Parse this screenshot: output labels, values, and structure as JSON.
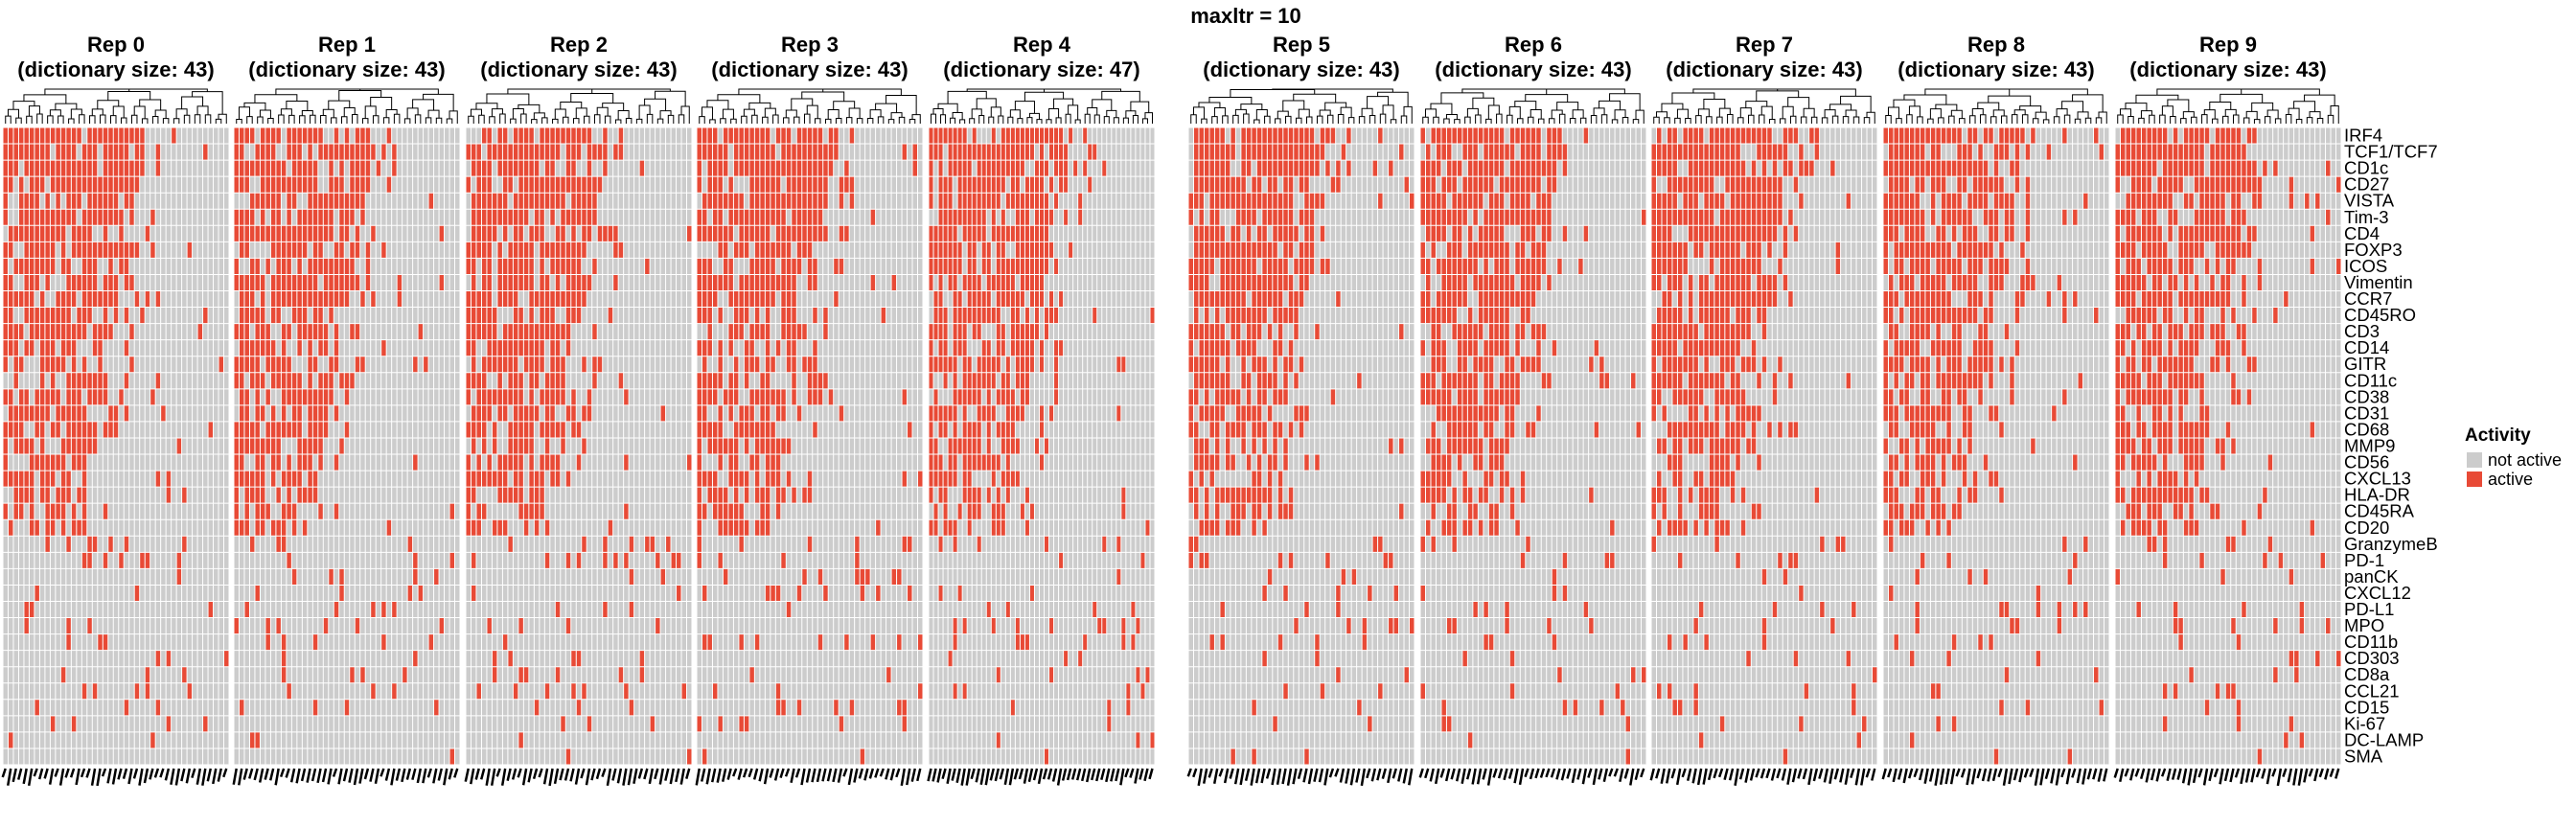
{
  "title": "maxltr = 10",
  "colors": {
    "active": "#e84a36",
    "not_active": "#cccccc",
    "grid": "#ffffff",
    "dendrogram": "#000000"
  },
  "chart_data": {
    "type": "heatmap",
    "title": "maxltr = 10",
    "rows": [
      "IRF4",
      "TCF1/TCF7",
      "CD1c",
      "CD27",
      "VISTA",
      "Tim-3",
      "CD4",
      "FOXP3",
      "ICOS",
      "Vimentin",
      "CCR7",
      "CD45RO",
      "CD3",
      "CD14",
      "GITR",
      "CD11c",
      "CD38",
      "CD31",
      "CD68",
      "MMP9",
      "CD56",
      "CXCL13",
      "HLA-DR",
      "CD45RA",
      "CD20",
      "GranzymeB",
      "PD-1",
      "panCK",
      "CXCL12",
      "PD-L1",
      "MPO",
      "CD11b",
      "CD303",
      "CD8a",
      "CCL21",
      "CD15",
      "Ki-67",
      "DC-LAMP",
      "SMA"
    ],
    "legend": {
      "title": "Activity",
      "position": "right",
      "items": [
        {
          "label": "not active",
          "color": "#cccccc"
        },
        {
          "label": "active",
          "color": "#e84a36"
        }
      ]
    },
    "panels": [
      {
        "title": "Rep 0",
        "subtitle": "(dictionary size: 43)",
        "columns": 43
      },
      {
        "title": "Rep 1",
        "subtitle": "(dictionary size: 43)",
        "columns": 43
      },
      {
        "title": "Rep 2",
        "subtitle": "(dictionary size: 43)",
        "columns": 43
      },
      {
        "title": "Rep 3",
        "subtitle": "(dictionary size: 43)",
        "columns": 43
      },
      {
        "title": "Rep 4",
        "subtitle": "(dictionary size: 47)",
        "columns": 47
      },
      {
        "title": "Rep 5",
        "subtitle": "(dictionary size: 43)",
        "columns": 43
      },
      {
        "title": "Rep 6",
        "subtitle": "(dictionary size: 43)",
        "columns": 43
      },
      {
        "title": "Rep 7",
        "subtitle": "(dictionary size: 43)",
        "columns": 43
      },
      {
        "title": "Rep 8",
        "subtitle": "(dictionary size: 43)",
        "columns": 43
      },
      {
        "title": "Rep 9",
        "subtitle": "(dictionary size: 43)",
        "columns": 43
      }
    ],
    "row_active_fraction": [
      0.36,
      0.36,
      0.36,
      0.37,
      0.35,
      0.33,
      0.33,
      0.3,
      0.28,
      0.27,
      0.26,
      0.26,
      0.26,
      0.3,
      0.26,
      0.24,
      0.22,
      0.22,
      0.2,
      0.18,
      0.17,
      0.15,
      0.14,
      0.12,
      0.11,
      0.1,
      0.08,
      0.07,
      0.07,
      0.07,
      0.06,
      0.06,
      0.05,
      0.05,
      0.05,
      0.04,
      0.03,
      0.02,
      0.02
    ]
  }
}
